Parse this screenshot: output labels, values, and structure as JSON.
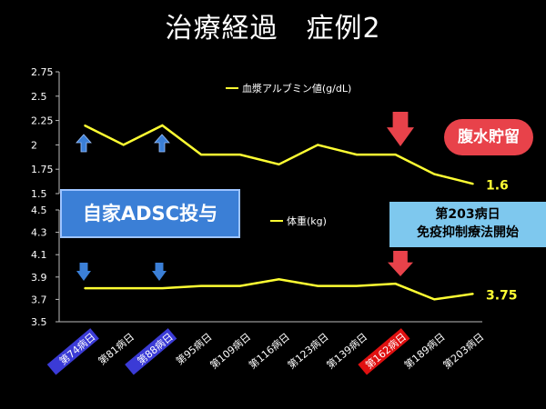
{
  "title": "治療経過　症例2",
  "chart_data": [
    {
      "type": "line",
      "series": [
        {
          "name": "血漿アルブミン値(g/dL)",
          "color": "#ffff33",
          "values": [
            2.2,
            2.0,
            2.2,
            1.9,
            1.9,
            1.8,
            2.0,
            1.9,
            1.9,
            1.7,
            1.6
          ]
        }
      ],
      "ylim": [
        1.5,
        2.75
      ],
      "yticks": [
        "1.5",
        "1.75",
        "2",
        "2.25",
        "2.5",
        "2.75"
      ],
      "end_label": "1.6"
    },
    {
      "type": "line",
      "series": [
        {
          "name": "体重(kg)",
          "color": "#ffff33",
          "values": [
            3.8,
            3.8,
            3.8,
            3.82,
            3.82,
            3.88,
            3.82,
            3.82,
            3.84,
            3.7,
            3.75
          ]
        }
      ],
      "ylim": [
        3.5,
        4.5
      ],
      "yticks": [
        "3.5",
        "3.7",
        "3.9",
        "4.1",
        "4.3",
        "4.5"
      ],
      "end_label": "3.75"
    }
  ],
  "categories": [
    "第74病日",
    "第81病日",
    "第88病日",
    "第95病日",
    "第109病日",
    "第116病日",
    "第123病日",
    "第139病日",
    "第162病日",
    "第189病日",
    "第203病日"
  ],
  "category_highlights": {
    "第74病日": "#3b3bd6",
    "第88病日": "#3b3bd6",
    "第162病日": "#e01010"
  },
  "annotations": {
    "adsc": "自家ADSC投与",
    "immuno_line1": "第203病日",
    "immuno_line2": "免疫抑制療法開始",
    "ascites": "腹水貯留"
  },
  "colors": {
    "up_arrow": "#3b7fd6",
    "down_arrow": "#3b7fd6",
    "red_arrow": "#e8424a",
    "line": "#ffff33"
  }
}
